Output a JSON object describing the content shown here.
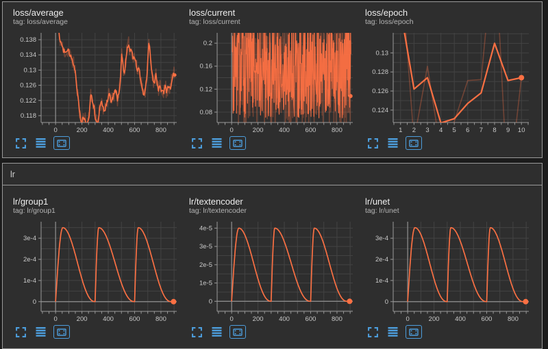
{
  "colors": {
    "line": "#fb7043",
    "accent_blue": "#4d9edd",
    "grid": "#434343",
    "zero_line": "#8a8a8a",
    "axis": "#9a9a9a",
    "tick_text": "#c9c9c9"
  },
  "sections": {
    "lr_header_label": "lr"
  },
  "icons": {
    "expand": "fullscreen-icon",
    "runs": "horizontal-lines-icon",
    "fit": "fit-domain-icon"
  },
  "chart_data": [
    {
      "id": "loss_average",
      "title": "loss/average",
      "tag": "tag: loss/average",
      "type": "line",
      "x_axis": {
        "min": -110,
        "max": 920,
        "grid": 100,
        "grid_from": 0,
        "tick": 50,
        "labels": [
          {
            "v": 0,
            "t": "0"
          },
          {
            "v": 200,
            "t": "200"
          },
          {
            "v": 400,
            "t": "400"
          },
          {
            "v": 600,
            "t": "600"
          },
          {
            "v": 800,
            "t": "800"
          }
        ]
      },
      "y_axis": {
        "min": 0.1162,
        "max": 0.1398,
        "grid": 0.002,
        "labels": [
          {
            "v": 0.118,
            "t": "0.118"
          },
          {
            "v": 0.122,
            "t": "0.122"
          },
          {
            "v": 0.126,
            "t": "0.126"
          },
          {
            "v": 0.13,
            "t": "0.13"
          },
          {
            "v": 0.134,
            "t": "0.134"
          },
          {
            "v": 0.138,
            "t": "0.138"
          }
        ]
      },
      "zero_x": true,
      "zero_y": false,
      "anchor_points": [
        [
          10,
          0.142
        ],
        [
          40,
          0.1372
        ],
        [
          60,
          0.1352
        ],
        [
          80,
          0.1345
        ],
        [
          95,
          0.1352
        ],
        [
          110,
          0.1338
        ],
        [
          125,
          0.133
        ],
        [
          140,
          0.1312
        ],
        [
          150,
          0.13
        ],
        [
          160,
          0.1258
        ],
        [
          175,
          0.1215
        ],
        [
          190,
          0.117
        ],
        [
          200,
          0.1162
        ],
        [
          210,
          0.118
        ],
        [
          225,
          0.1168
        ],
        [
          240,
          0.1158
        ],
        [
          255,
          0.1182
        ],
        [
          268,
          0.124
        ],
        [
          280,
          0.1218
        ],
        [
          292,
          0.1203
        ],
        [
          305,
          0.1168
        ],
        [
          320,
          0.116
        ],
        [
          335,
          0.1202
        ],
        [
          350,
          0.1215
        ],
        [
          362,
          0.12
        ],
        [
          372,
          0.1188
        ],
        [
          385,
          0.121
        ],
        [
          400,
          0.1228
        ],
        [
          412,
          0.1238
        ],
        [
          422,
          0.1215
        ],
        [
          435,
          0.1228
        ],
        [
          448,
          0.124
        ],
        [
          460,
          0.1246
        ],
        [
          470,
          0.1222
        ],
        [
          480,
          0.124
        ],
        [
          492,
          0.127
        ],
        [
          502,
          0.1342
        ],
        [
          512,
          0.1318
        ],
        [
          522,
          0.1288
        ],
        [
          532,
          0.1325
        ],
        [
          545,
          0.1358
        ],
        [
          555,
          0.1368
        ],
        [
          565,
          0.135
        ],
        [
          578,
          0.1355
        ],
        [
          590,
          0.133
        ],
        [
          600,
          0.1336
        ],
        [
          612,
          0.1315
        ],
        [
          622,
          0.1295
        ],
        [
          632,
          0.1306
        ],
        [
          642,
          0.1285
        ],
        [
          652,
          0.1268
        ],
        [
          662,
          0.1248
        ],
        [
          672,
          0.1232
        ],
        [
          682,
          0.1248
        ],
        [
          695,
          0.1295
        ],
        [
          708,
          0.1372
        ],
        [
          718,
          0.1348
        ],
        [
          728,
          0.1305
        ],
        [
          740,
          0.1278
        ],
        [
          752,
          0.1266
        ],
        [
          762,
          0.1288
        ],
        [
          772,
          0.1262
        ],
        [
          782,
          0.1248
        ],
        [
          792,
          0.1256
        ],
        [
          802,
          0.1244
        ],
        [
          812,
          0.1252
        ],
        [
          822,
          0.1242
        ],
        [
          832,
          0.1262
        ],
        [
          842,
          0.124
        ],
        [
          852,
          0.1252
        ],
        [
          862,
          0.1258
        ],
        [
          872,
          0.1246
        ],
        [
          882,
          0.1275
        ],
        [
          895,
          0.1292
        ],
        [
          905,
          0.1287
        ]
      ],
      "series": [
        {
          "kind": "anchors",
          "role": "raw",
          "seed": 11,
          "jitter": 0.002,
          "step": 4,
          "opacity": 0.3,
          "width": 1.6
        },
        {
          "kind": "anchors",
          "role": "smoothed",
          "seed": 12,
          "jitter": 0.0006,
          "step": 5,
          "opacity": 1,
          "width": 1.6
        }
      ],
      "end_dot": {
        "x": 905,
        "y": 0.1287,
        "r": 2.5
      }
    },
    {
      "id": "loss_current",
      "title": "loss/current",
      "tag": "tag: loss/current",
      "type": "line",
      "x_axis": {
        "min": -110,
        "max": 920,
        "grid": 100,
        "grid_from": 0,
        "tick": 50,
        "labels": [
          {
            "v": 0,
            "t": "0"
          },
          {
            "v": 200,
            "t": "200"
          },
          {
            "v": 400,
            "t": "400"
          },
          {
            "v": 600,
            "t": "600"
          },
          {
            "v": 800,
            "t": "800"
          }
        ]
      },
      "y_axis": {
        "min": 0.062,
        "max": 0.218,
        "grid": 0.02,
        "labels": [
          {
            "v": 0.08,
            "t": "0.08"
          },
          {
            "v": 0.12,
            "t": "0.12"
          },
          {
            "v": 0.16,
            "t": "0.16"
          },
          {
            "v": 0.2,
            "t": "0.2"
          }
        ]
      },
      "zero_x": true,
      "zero_y": false,
      "series": [
        {
          "kind": "noise",
          "role": "raw",
          "seed": 30,
          "n": 420,
          "x0": 5,
          "x1": 905,
          "lo": 0.052,
          "hi": 0.25,
          "opacity": 0.3,
          "width": 1.7
        },
        {
          "kind": "noise",
          "role": "smoothed",
          "seed": 31,
          "n": 420,
          "x0": 5,
          "x1": 905,
          "lo": 0.07,
          "hi": 0.24,
          "opacity": 0.95,
          "width": 1.2
        }
      ],
      "end_dot": {
        "x": 903,
        "y": 0.108,
        "r": 3
      }
    },
    {
      "id": "loss_epoch",
      "title": "loss/epoch",
      "tag": "tag: loss/epoch",
      "type": "line",
      "x_axis": {
        "min": 0.45,
        "max": 10.55,
        "grid": 1,
        "grid_from": 1,
        "tick": 0.5,
        "labels": [
          {
            "v": 1,
            "t": "1"
          },
          {
            "v": 2,
            "t": "2"
          },
          {
            "v": 3,
            "t": "3"
          },
          {
            "v": 4,
            "t": "4"
          },
          {
            "v": 5,
            "t": "5"
          },
          {
            "v": 6,
            "t": "6"
          },
          {
            "v": 7,
            "t": "7"
          },
          {
            "v": 8,
            "t": "8"
          },
          {
            "v": 9,
            "t": "9"
          },
          {
            "v": 10,
            "t": "10"
          }
        ]
      },
      "y_axis": {
        "min": 0.1227,
        "max": 0.1321,
        "grid": 0.001,
        "labels": [
          {
            "v": 0.124,
            "t": "0.124"
          },
          {
            "v": 0.126,
            "t": "0.126"
          },
          {
            "v": 0.128,
            "t": "0.128"
          },
          {
            "v": 0.13,
            "t": "0.13"
          }
        ]
      },
      "zero_x": false,
      "zero_y": false,
      "series": [
        {
          "kind": "points",
          "role": "raw",
          "opacity": 0.32,
          "width": 1.6,
          "points": [
            [
              1,
              0.1395
            ],
            [
              2,
              0.1208
            ],
            [
              3,
              0.1286
            ],
            [
              4,
              0.1196
            ],
            [
              5,
              0.1228
            ],
            [
              6,
              0.1271
            ],
            [
              7,
              0.1272
            ],
            [
              8,
              0.142
            ],
            [
              9,
              0.115
            ],
            [
              10,
              0.1274
            ]
          ]
        },
        {
          "kind": "points",
          "role": "smoothed",
          "opacity": 1,
          "width": 2.2,
          "points": [
            [
              1,
              0.1345
            ],
            [
              2,
              0.1262
            ],
            [
              3,
              0.1274
            ],
            [
              4,
              0.12265
            ],
            [
              5,
              0.1231
            ],
            [
              6,
              0.1247
            ],
            [
              7,
              0.1258
            ],
            [
              8,
              0.131
            ],
            [
              9,
              0.1271
            ],
            [
              10,
              0.1274
            ]
          ]
        }
      ],
      "end_dot": {
        "x": 10,
        "y": 0.1274,
        "r": 4
      }
    },
    {
      "id": "lr_group1",
      "title": "lr/group1",
      "tag": "tag: lr/group1",
      "type": "line",
      "x_axis": {
        "min": -110,
        "max": 920,
        "grid": 100,
        "grid_from": 0,
        "tick": 50,
        "labels": [
          {
            "v": 0,
            "t": "0"
          },
          {
            "v": 200,
            "t": "200"
          },
          {
            "v": 400,
            "t": "400"
          },
          {
            "v": 600,
            "t": "600"
          },
          {
            "v": 800,
            "t": "800"
          }
        ]
      },
      "y_axis": {
        "min": -4.6e-05,
        "max": 0.000378,
        "grid": 5e-05,
        "labels": [
          {
            "v": 0,
            "t": "0"
          },
          {
            "v": 0.0001,
            "t": "1e-4"
          },
          {
            "v": 0.0002,
            "t": "2e-4"
          },
          {
            "v": 0.0003,
            "t": "3e-4"
          }
        ]
      },
      "zero_x": true,
      "zero_y": true,
      "series": [
        {
          "kind": "lr",
          "role": "smoothed",
          "peak": 0.00035,
          "cycles": [
            [
              0,
              55,
              300
            ],
            [
              300,
              28,
              600
            ],
            [
              600,
              28,
              878
            ]
          ],
          "x_end": 905,
          "opacity": 1,
          "width": 1.7
        }
      ],
      "end_dot": {
        "x": 896,
        "y": 0,
        "r": 4
      }
    },
    {
      "id": "lr_textencoder",
      "title": "lr/textencoder",
      "tag": "tag: lr/textencoder",
      "type": "line",
      "x_axis": {
        "min": -110,
        "max": 920,
        "grid": 100,
        "grid_from": 0,
        "tick": 50,
        "labels": [
          {
            "v": 0,
            "t": "0"
          },
          {
            "v": 200,
            "t": "200"
          },
          {
            "v": 400,
            "t": "400"
          },
          {
            "v": 600,
            "t": "600"
          },
          {
            "v": 800,
            "t": "800"
          }
        ]
      },
      "y_axis": {
        "min": -5.5e-06,
        "max": 4.35e-05,
        "grid": 5e-06,
        "labels": [
          {
            "v": 0,
            "t": "0"
          },
          {
            "v": 1e-05,
            "t": "1e-5"
          },
          {
            "v": 2e-05,
            "t": "2e-5"
          },
          {
            "v": 3e-05,
            "t": "3e-5"
          },
          {
            "v": 4e-05,
            "t": "4e-5"
          }
        ]
      },
      "zero_x": true,
      "zero_y": true,
      "series": [
        {
          "kind": "lr",
          "role": "smoothed",
          "peak": 4e-05,
          "cycles": [
            [
              0,
              55,
              300
            ],
            [
              300,
              28,
              600
            ],
            [
              600,
              28,
              878
            ]
          ],
          "x_end": 905,
          "opacity": 1,
          "width": 1.7
        }
      ],
      "end_dot": {
        "x": 896,
        "y": 0,
        "r": 4
      }
    },
    {
      "id": "lr_unet",
      "title": "lr/unet",
      "tag": "tag: lr/unet",
      "type": "line",
      "x_axis": {
        "min": -110,
        "max": 920,
        "grid": 100,
        "grid_from": 0,
        "tick": 50,
        "labels": [
          {
            "v": 0,
            "t": "0"
          },
          {
            "v": 200,
            "t": "200"
          },
          {
            "v": 400,
            "t": "400"
          },
          {
            "v": 600,
            "t": "600"
          },
          {
            "v": 800,
            "t": "800"
          }
        ]
      },
      "y_axis": {
        "min": -4.6e-05,
        "max": 0.000378,
        "grid": 5e-05,
        "labels": [
          {
            "v": 0,
            "t": "0"
          },
          {
            "v": 0.0001,
            "t": "1e-4"
          },
          {
            "v": 0.0002,
            "t": "2e-4"
          },
          {
            "v": 0.0003,
            "t": "3e-4"
          }
        ]
      },
      "zero_x": true,
      "zero_y": true,
      "series": [
        {
          "kind": "lr",
          "role": "smoothed",
          "peak": 0.00035,
          "cycles": [
            [
              0,
              55,
              300
            ],
            [
              300,
              28,
              600
            ],
            [
              600,
              28,
              878
            ]
          ],
          "x_end": 905,
          "opacity": 1,
          "width": 1.7
        }
      ],
      "end_dot": {
        "x": 896,
        "y": 0,
        "r": 4
      }
    }
  ]
}
